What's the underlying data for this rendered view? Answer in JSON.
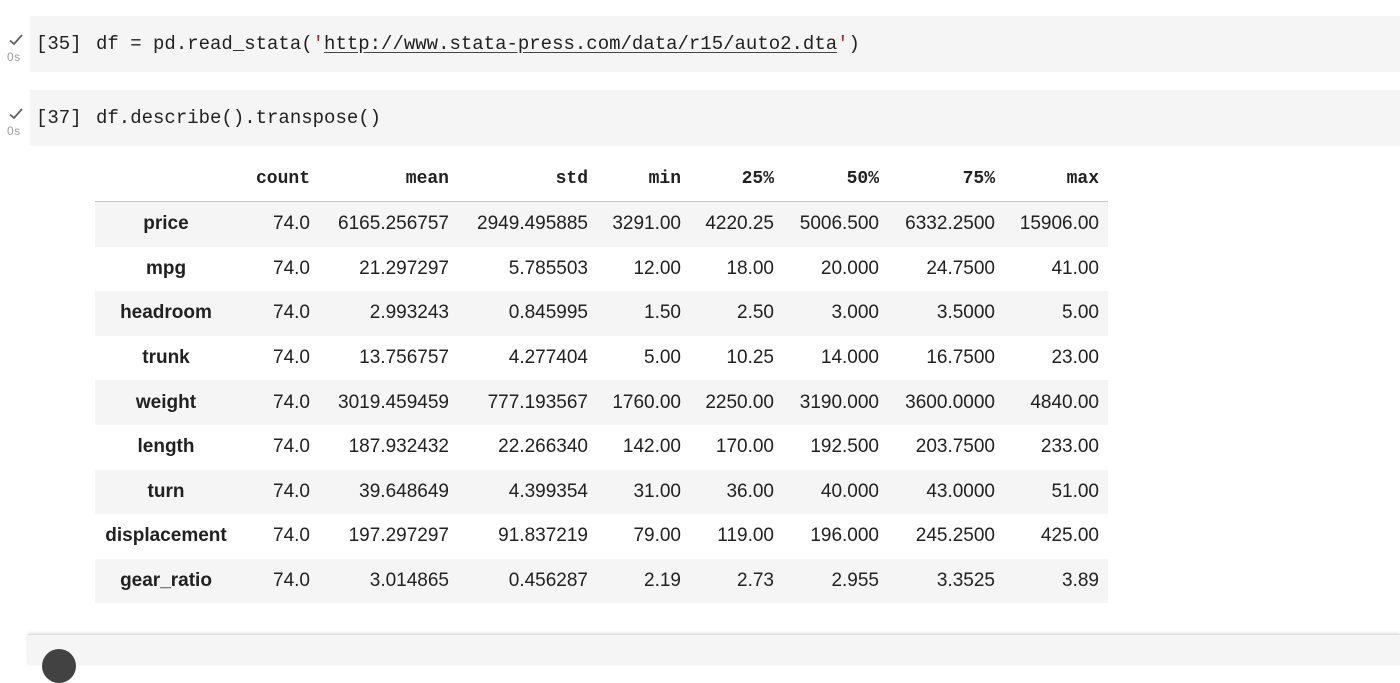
{
  "cells": [
    {
      "prompt": "[35]",
      "exec_time": "0s",
      "code_prefix": "df = pd.read_stata(",
      "code_quote_open": "'",
      "code_url": "http://www.stata-press.com/data/r15/auto2.dta",
      "code_quote_close": "'",
      "code_suffix": ")"
    },
    {
      "prompt": "[37]",
      "exec_time": "0s",
      "code": "df.describe().transpose()"
    }
  ],
  "table": {
    "columns": [
      "count",
      "mean",
      "std",
      "min",
      "25%",
      "50%",
      "75%",
      "max"
    ],
    "rows": [
      {
        "index": "price",
        "values": [
          "74.0",
          "6165.256757",
          "2949.495885",
          "3291.00",
          "4220.25",
          "5006.500",
          "6332.2500",
          "15906.00"
        ]
      },
      {
        "index": "mpg",
        "values": [
          "74.0",
          "21.297297",
          "5.785503",
          "12.00",
          "18.00",
          "20.000",
          "24.7500",
          "41.00"
        ]
      },
      {
        "index": "headroom",
        "values": [
          "74.0",
          "2.993243",
          "0.845995",
          "1.50",
          "2.50",
          "3.000",
          "3.5000",
          "5.00"
        ]
      },
      {
        "index": "trunk",
        "values": [
          "74.0",
          "13.756757",
          "4.277404",
          "5.00",
          "10.25",
          "14.000",
          "16.7500",
          "23.00"
        ]
      },
      {
        "index": "weight",
        "values": [
          "74.0",
          "3019.459459",
          "777.193567",
          "1760.00",
          "2250.00",
          "3190.000",
          "3600.0000",
          "4840.00"
        ]
      },
      {
        "index": "length",
        "values": [
          "74.0",
          "187.932432",
          "22.266340",
          "142.00",
          "170.00",
          "192.500",
          "203.7500",
          "233.00"
        ]
      },
      {
        "index": "turn",
        "values": [
          "74.0",
          "39.648649",
          "4.399354",
          "31.00",
          "36.00",
          "40.000",
          "43.0000",
          "51.00"
        ]
      },
      {
        "index": "displacement",
        "values": [
          "74.0",
          "197.297297",
          "91.837219",
          "79.00",
          "119.00",
          "196.000",
          "245.2500",
          "425.00"
        ]
      },
      {
        "index": "gear_ratio",
        "values": [
          "74.0",
          "3.014865",
          "0.456287",
          "2.19",
          "2.73",
          "2.955",
          "3.3525",
          "3.89"
        ]
      }
    ]
  },
  "icons": {
    "check": "check-icon",
    "run": "run-cell-icon"
  },
  "colors": {
    "cell_background": "#f5f5f5",
    "string_literal": "#b71c1c",
    "status_gray": "#9e9e9e"
  }
}
